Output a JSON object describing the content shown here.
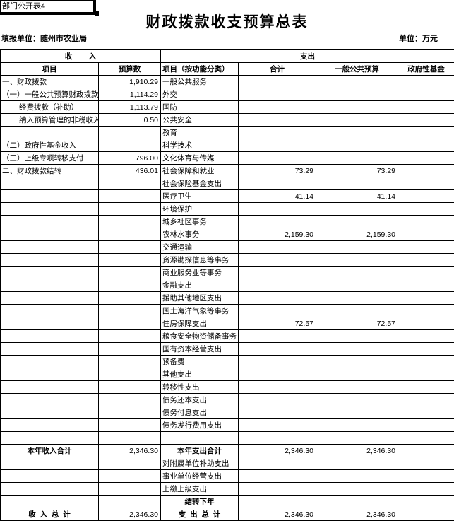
{
  "corner_label": "部门公开表4",
  "title": "财政拨款收支预算总表",
  "meta": {
    "reporting_unit": "填报单位：随州市农业局",
    "unit_note": "单位：万元"
  },
  "table": {
    "group_headers": {
      "income": "收        入",
      "expenditure": "支出"
    },
    "column_headers": [
      "项目",
      "预算数",
      "项目（按功能分类）",
      "合计",
      "一般公共预算",
      "政府性基金"
    ],
    "rows": [
      {
        "income": "一、财政拨款",
        "income_val": "1,910.29",
        "exp": "一般公共服务",
        "total": "",
        "gen": "",
        "fund": ""
      },
      {
        "income": "（一）一般公共预算财政拨款",
        "income_val": "1,114.29",
        "exp": "外交",
        "total": "",
        "gen": "",
        "fund": ""
      },
      {
        "income": "经费拨款（补助）",
        "income_val": "1,113.79",
        "exp": "国防",
        "total": "",
        "gen": "",
        "fund": "",
        "income_indent": true
      },
      {
        "income": "纳入预算管理的非税收入",
        "income_val": "0.50",
        "exp": "公共安全",
        "total": "",
        "gen": "",
        "fund": "",
        "income_indent": true
      },
      {
        "income": "",
        "income_val": "",
        "exp": "教育",
        "total": "",
        "gen": "",
        "fund": ""
      },
      {
        "income": "（二）政府性基金收入",
        "income_val": "",
        "exp": "科学技术",
        "total": "",
        "gen": "",
        "fund": ""
      },
      {
        "income": "（三）上级专项转移支付",
        "income_val": "796.00",
        "exp": "文化体育与传媒",
        "total": "",
        "gen": "",
        "fund": ""
      },
      {
        "income": "二、财政拨款结转",
        "income_val": "436.01",
        "exp": "社会保障和就业",
        "total": "73.29",
        "gen": "73.29",
        "fund": ""
      },
      {
        "income": "",
        "income_val": "",
        "exp": "社会保险基金支出",
        "total": "",
        "gen": "",
        "fund": ""
      },
      {
        "income": "",
        "income_val": "",
        "exp": "医疗卫生",
        "total": "41.14",
        "gen": "41.14",
        "fund": ""
      },
      {
        "income": "",
        "income_val": "",
        "exp": "环境保护",
        "total": "",
        "gen": "",
        "fund": ""
      },
      {
        "income": "",
        "income_val": "",
        "exp": "城乡社区事务",
        "total": "",
        "gen": "",
        "fund": ""
      },
      {
        "income": "",
        "income_val": "",
        "exp": "农林水事务",
        "total": "2,159.30",
        "gen": "2,159.30",
        "fund": ""
      },
      {
        "income": "",
        "income_val": "",
        "exp": "交通运输",
        "total": "",
        "gen": "",
        "fund": ""
      },
      {
        "income": "",
        "income_val": "",
        "exp": "资源勘探信息等事务",
        "total": "",
        "gen": "",
        "fund": ""
      },
      {
        "income": "",
        "income_val": "",
        "exp": "商业服务业等事务",
        "total": "",
        "gen": "",
        "fund": ""
      },
      {
        "income": "",
        "income_val": "",
        "exp": "金融支出",
        "total": "",
        "gen": "",
        "fund": ""
      },
      {
        "income": "",
        "income_val": "",
        "exp": "援助其他地区支出",
        "total": "",
        "gen": "",
        "fund": ""
      },
      {
        "income": "",
        "income_val": "",
        "exp": "国土海洋气象等事务",
        "total": "",
        "gen": "",
        "fund": ""
      },
      {
        "income": "",
        "income_val": "",
        "exp": "住房保障支出",
        "total": "72.57",
        "gen": "72.57",
        "fund": ""
      },
      {
        "income": "",
        "income_val": "",
        "exp": "粮食安全物资储备事务",
        "total": "",
        "gen": "",
        "fund": ""
      },
      {
        "income": "",
        "income_val": "",
        "exp": "国有资本经营支出",
        "total": "",
        "gen": "",
        "fund": ""
      },
      {
        "income": "",
        "income_val": "",
        "exp": "预备费",
        "total": "",
        "gen": "",
        "fund": ""
      },
      {
        "income": "",
        "income_val": "",
        "exp": "其他支出",
        "total": "",
        "gen": "",
        "fund": ""
      },
      {
        "income": "",
        "income_val": "",
        "exp": "转移性支出",
        "total": "",
        "gen": "",
        "fund": ""
      },
      {
        "income": "",
        "income_val": "",
        "exp": "债务还本支出",
        "total": "",
        "gen": "",
        "fund": ""
      },
      {
        "income": "",
        "income_val": "",
        "exp": "债务付息支出",
        "total": "",
        "gen": "",
        "fund": ""
      },
      {
        "income": "",
        "income_val": "",
        "exp": "债务发行费用支出",
        "total": "",
        "gen": "",
        "fund": ""
      },
      {
        "income": "",
        "income_val": "",
        "exp": "",
        "total": "",
        "gen": "",
        "fund": ""
      },
      {
        "income": "本年收入合计",
        "income_val": "2,346.30",
        "exp": "本年支出合计",
        "total": "2,346.30",
        "gen": "2,346.30",
        "fund": "",
        "income_sum": true,
        "exp_sum": true
      },
      {
        "income": "",
        "income_val": "",
        "exp": "对附属单位补助支出",
        "total": "",
        "gen": "",
        "fund": ""
      },
      {
        "income": "",
        "income_val": "",
        "exp": "事业单位经营支出",
        "total": "",
        "gen": "",
        "fund": ""
      },
      {
        "income": "",
        "income_val": "",
        "exp": "上缴上级支出",
        "total": "",
        "gen": "",
        "fund": ""
      },
      {
        "income": "",
        "income_val": "",
        "exp": "结转下年",
        "total": "",
        "gen": "",
        "fund": "",
        "exp_sum": true
      },
      {
        "income": "收  入  总  计",
        "income_val": "2,346.30",
        "exp": "支  出  总  计",
        "total": "2,346.30",
        "gen": "2,346.30",
        "fund": "",
        "income_sum": true,
        "exp_sum": true
      }
    ]
  }
}
